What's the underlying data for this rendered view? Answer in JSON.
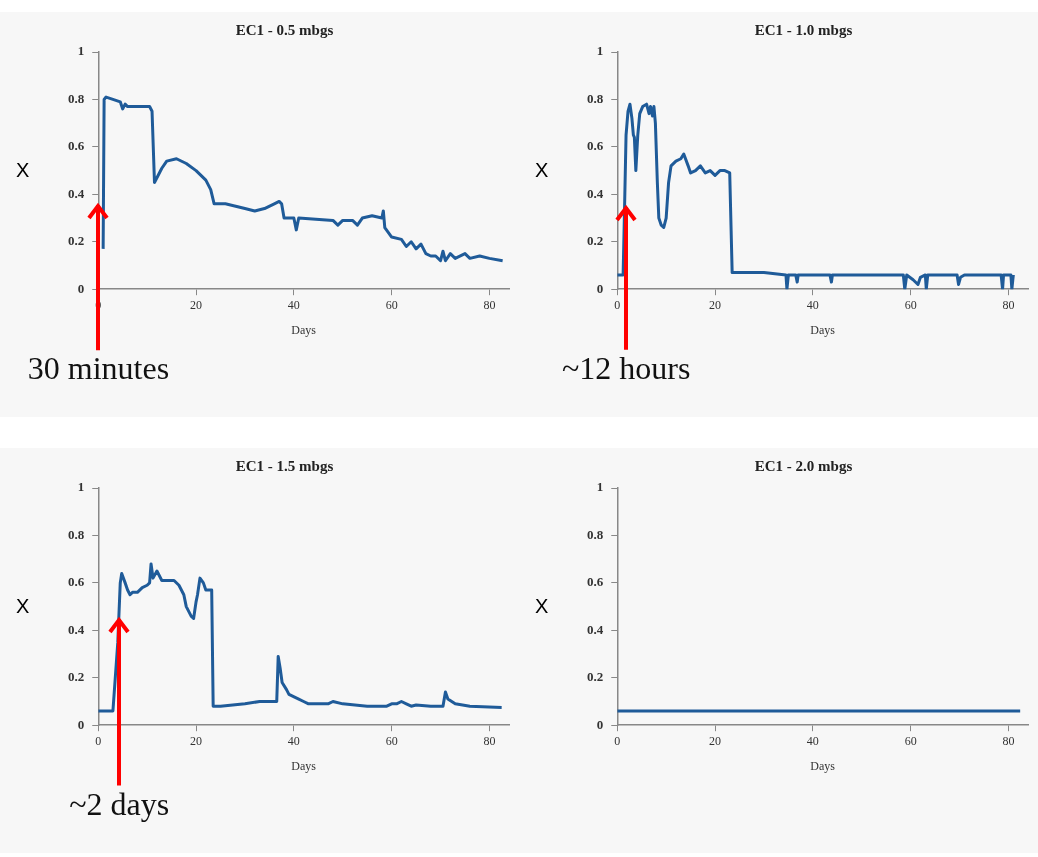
{
  "chart_data": [
    {
      "type": "line",
      "title": "EC1 - 0.5 mbgs",
      "xlabel": "Days",
      "ylabel": "X",
      "color": "#1f5b99",
      "xlim": [
        0,
        84
      ],
      "ylim": [
        0,
        1
      ],
      "xticks": [
        0,
        20,
        40,
        60,
        80
      ],
      "yticks": [
        0,
        0.2,
        0.4,
        0.6,
        0.8,
        1
      ],
      "grid": false,
      "legend": false,
      "annotations": [
        "30 minutes"
      ],
      "x": [
        1,
        1.2,
        1.6,
        3,
        4.5,
        5,
        5.5,
        6,
        10.5,
        11,
        11.5,
        13,
        14,
        16,
        18,
        20,
        22,
        23,
        23.7,
        26,
        30,
        32,
        34,
        36,
        37,
        37.5,
        38,
        40,
        40.5,
        41,
        48,
        49,
        50,
        52,
        53,
        54,
        56,
        58,
        58.3,
        58.6,
        60,
        62,
        63,
        64,
        65,
        66,
        67,
        68,
        69,
        70,
        70.5,
        71,
        72,
        73,
        75,
        76,
        78,
        80,
        82.7
      ],
      "values": [
        0.17,
        0.8,
        0.81,
        0.8,
        0.79,
        0.76,
        0.78,
        0.77,
        0.77,
        0.75,
        0.45,
        0.51,
        0.54,
        0.55,
        0.53,
        0.5,
        0.46,
        0.42,
        0.36,
        0.36,
        0.34,
        0.33,
        0.34,
        0.36,
        0.37,
        0.36,
        0.3,
        0.3,
        0.25,
        0.3,
        0.29,
        0.27,
        0.29,
        0.29,
        0.27,
        0.3,
        0.31,
        0.3,
        0.33,
        0.26,
        0.22,
        0.21,
        0.18,
        0.2,
        0.17,
        0.19,
        0.15,
        0.14,
        0.14,
        0.12,
        0.16,
        0.12,
        0.15,
        0.13,
        0.15,
        0.13,
        0.14,
        0.13,
        0.12
      ]
    },
    {
      "type": "line",
      "title": "EC1 - 1.0 mbgs",
      "xlabel": "Days",
      "ylabel": "X",
      "color": "#1f5b99",
      "xlim": [
        0,
        84
      ],
      "ylim": [
        0,
        1
      ],
      "xticks": [
        0,
        20,
        40,
        60,
        80
      ],
      "yticks": [
        0,
        0.2,
        0.4,
        0.6,
        0.8,
        1
      ],
      "grid": false,
      "legend": false,
      "annotations": [
        {
          "text": "~12 hours",
          "x": 1.8,
          "y": 0.35
        }
      ],
      "x": [
        0,
        1.2,
        1.5,
        1.8,
        2.2,
        2.6,
        3,
        3.3,
        3.5,
        3.8,
        4.2,
        4.6,
        5.2,
        6,
        6.5,
        6.8,
        7.2,
        7.5,
        7.8,
        8.2,
        8.5,
        9,
        9.5,
        10,
        10.5,
        11,
        12,
        13,
        13.6,
        14.5,
        15,
        16,
        17,
        18,
        19,
        20,
        21,
        22,
        23,
        23.5,
        30,
        34.5,
        34.7,
        35,
        36.5,
        36.8,
        37,
        43.5,
        43.8,
        44,
        58.5,
        58.8,
        59.2,
        60.5,
        61.5,
        62,
        63,
        63.2,
        63.5,
        69.5,
        69.8,
        70.2,
        71,
        78.5,
        78.8,
        79,
        80.5,
        80.7,
        81
      ],
      "values": [
        0.06,
        0.06,
        0.35,
        0.65,
        0.75,
        0.78,
        0.72,
        0.65,
        0.64,
        0.5,
        0.65,
        0.74,
        0.77,
        0.78,
        0.74,
        0.77,
        0.73,
        0.77,
        0.7,
        0.45,
        0.3,
        0.27,
        0.26,
        0.3,
        0.45,
        0.52,
        0.54,
        0.55,
        0.57,
        0.52,
        0.49,
        0.5,
        0.52,
        0.49,
        0.5,
        0.48,
        0.5,
        0.5,
        0.49,
        0.07,
        0.07,
        0.06,
        0,
        0.06,
        0.06,
        0.03,
        0.06,
        0.06,
        0.03,
        0.06,
        0.06,
        0,
        0.06,
        0.04,
        0.02,
        0.05,
        0.06,
        0,
        0.06,
        0.06,
        0.02,
        0.05,
        0.06,
        0.06,
        0,
        0.06,
        0.06,
        0,
        0.06
      ]
    },
    {
      "type": "line",
      "title": "EC1 - 1.5 mbgs",
      "xlabel": "Days",
      "ylabel": "X",
      "color": "#1f5b99",
      "xlim": [
        0,
        84
      ],
      "ylim": [
        0,
        1
      ],
      "xticks": [
        0,
        20,
        40,
        60,
        80
      ],
      "yticks": [
        0,
        0.2,
        0.4,
        0.6,
        0.8,
        1
      ],
      "grid": false,
      "legend": false,
      "annotations": [
        {
          "text": "~2 days",
          "x": 4.3,
          "y": 0.45
        }
      ],
      "x": [
        0,
        3,
        4,
        4.5,
        4.8,
        5.5,
        6,
        6.5,
        7,
        8,
        9,
        10,
        10.5,
        10.8,
        11.2,
        12,
        12.5,
        13,
        15.5,
        16.5,
        17.5,
        18,
        19,
        19.5,
        20,
        20.3,
        20.8,
        21.5,
        22,
        23.2,
        23.5,
        25,
        30,
        33,
        36.5,
        36.8,
        37.2,
        37.6,
        38.5,
        39,
        41,
        42,
        43,
        47,
        48,
        50,
        55,
        59,
        60,
        61,
        62,
        63,
        64,
        65,
        68,
        70.5,
        71,
        71.5,
        73,
        76,
        82.5
      ],
      "values": [
        0.06,
        0.06,
        0.35,
        0.6,
        0.64,
        0.6,
        0.57,
        0.55,
        0.56,
        0.56,
        0.58,
        0.59,
        0.6,
        0.68,
        0.62,
        0.65,
        0.63,
        0.61,
        0.61,
        0.59,
        0.55,
        0.5,
        0.46,
        0.45,
        0.52,
        0.55,
        0.62,
        0.6,
        0.57,
        0.57,
        0.08,
        0.08,
        0.09,
        0.1,
        0.1,
        0.29,
        0.24,
        0.18,
        0.15,
        0.13,
        0.11,
        0.1,
        0.09,
        0.09,
        0.1,
        0.09,
        0.08,
        0.08,
        0.09,
        0.09,
        0.1,
        0.09,
        0.08,
        0.085,
        0.08,
        0.08,
        0.14,
        0.11,
        0.09,
        0.08,
        0.075
      ]
    },
    {
      "type": "line",
      "title": "EC1 - 2.0 mbgs",
      "xlabel": "Days",
      "ylabel": "X",
      "color": "#1f5b99",
      "xlim": [
        0,
        84
      ],
      "ylim": [
        0,
        1
      ],
      "xticks": [
        0,
        20,
        40,
        60,
        80
      ],
      "yticks": [
        0,
        0.2,
        0.4,
        0.6,
        0.8,
        1
      ],
      "grid": false,
      "legend": false,
      "x": [
        0,
        82.4
      ],
      "values": [
        0.06,
        0.06
      ]
    }
  ]
}
